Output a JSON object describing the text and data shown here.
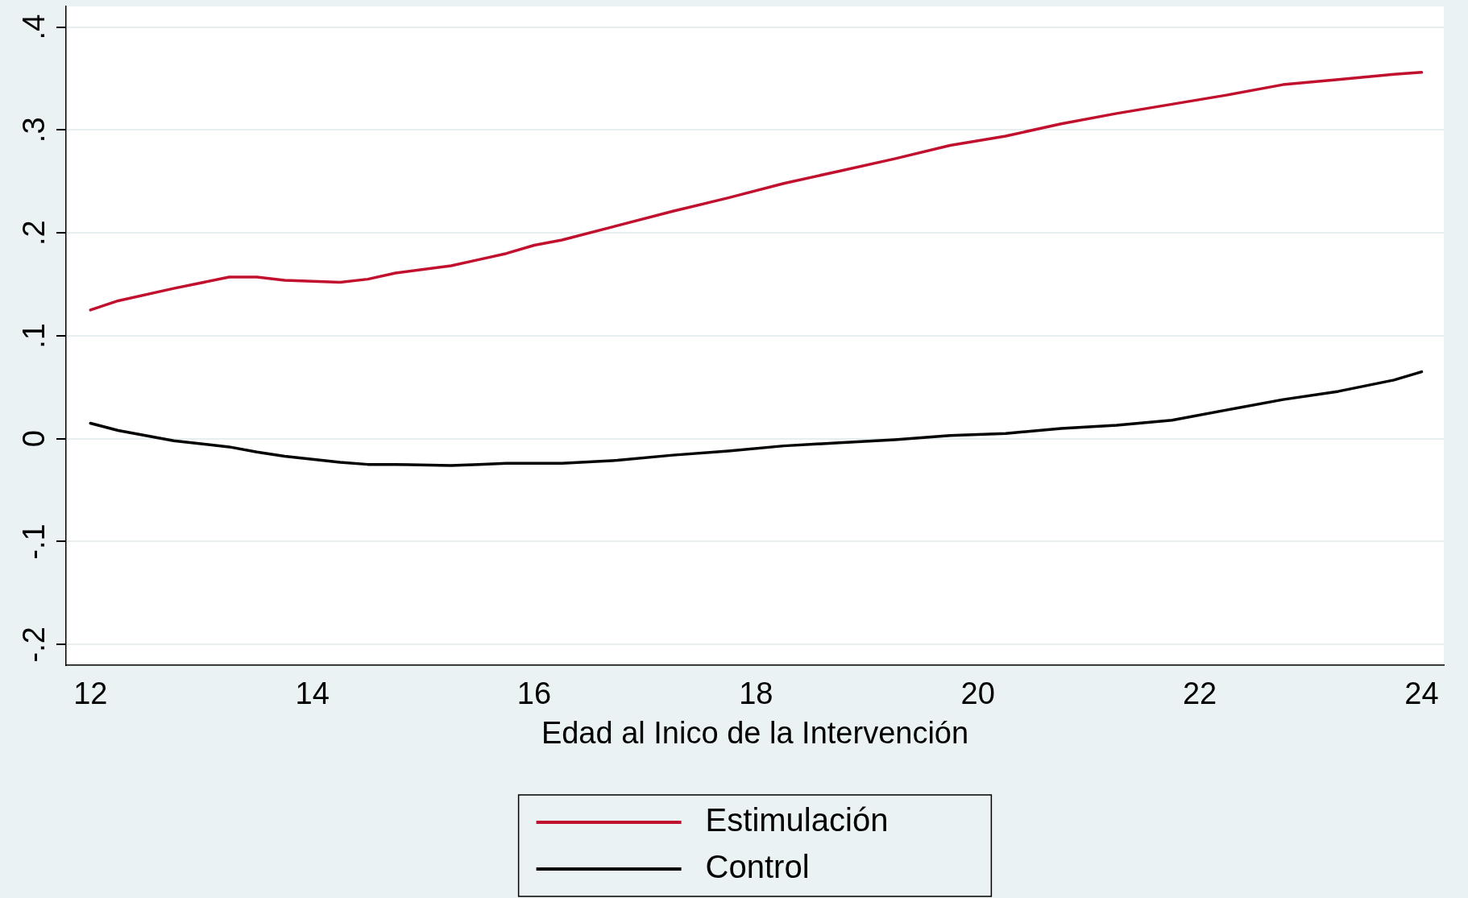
{
  "chart_data": {
    "type": "line",
    "xlabel": "Edad al Inico de la Intervención",
    "xlim": [
      11.78,
      24.2
    ],
    "xticks": [
      12,
      14,
      16,
      18,
      20,
      22,
      24
    ],
    "ylim": [
      -0.22,
      0.42
    ],
    "yticks": [
      {
        "value": -0.2,
        "label": "-.2"
      },
      {
        "value": -0.1,
        "label": "-.1"
      },
      {
        "value": 0,
        "label": "0"
      },
      {
        "value": 0.1,
        "label": ".1"
      },
      {
        "value": 0.2,
        "label": ".2"
      },
      {
        "value": 0.3,
        "label": ".3"
      },
      {
        "value": 0.4,
        "label": ".4"
      }
    ],
    "grid": "y",
    "legend": "bottom",
    "marker": "none",
    "line_style": "solid",
    "x": [
      12,
      12.25,
      12.75,
      13.25,
      13.5,
      13.75,
      14,
      14.25,
      14.5,
      14.75,
      15.25,
      15.5,
      15.75,
      16,
      16.25,
      16.75,
      17.25,
      17.75,
      18.25,
      18.75,
      19.25,
      19.75,
      20.25,
      20.75,
      21.25,
      21.75,
      22.25,
      22.75,
      23.25,
      23.75,
      24
    ],
    "series": [
      {
        "name": "Estimulación",
        "color": "#c0102e",
        "values": [
          0.125,
          0.134,
          0.146,
          0.157,
          0.157,
          0.154,
          0.153,
          0.152,
          0.155,
          0.161,
          0.168,
          0.174,
          0.18,
          0.188,
          0.193,
          0.207,
          0.221,
          0.234,
          0.248,
          0.26,
          0.272,
          0.285,
          0.294,
          0.306,
          0.316,
          0.325,
          0.334,
          0.344,
          0.349,
          0.354,
          0.356
        ]
      },
      {
        "name": "Control",
        "color": "#000000",
        "values": [
          0.015,
          0.008,
          -0.002,
          -0.008,
          -0.013,
          -0.017,
          -0.02,
          -0.023,
          -0.025,
          -0.025,
          -0.026,
          -0.025,
          -0.024,
          -0.024,
          -0.024,
          -0.021,
          -0.016,
          -0.012,
          -0.007,
          -0.004,
          -0.001,
          0.003,
          0.005,
          0.01,
          0.013,
          0.018,
          0.028,
          0.038,
          0.046,
          0.057,
          0.065
        ]
      }
    ]
  }
}
